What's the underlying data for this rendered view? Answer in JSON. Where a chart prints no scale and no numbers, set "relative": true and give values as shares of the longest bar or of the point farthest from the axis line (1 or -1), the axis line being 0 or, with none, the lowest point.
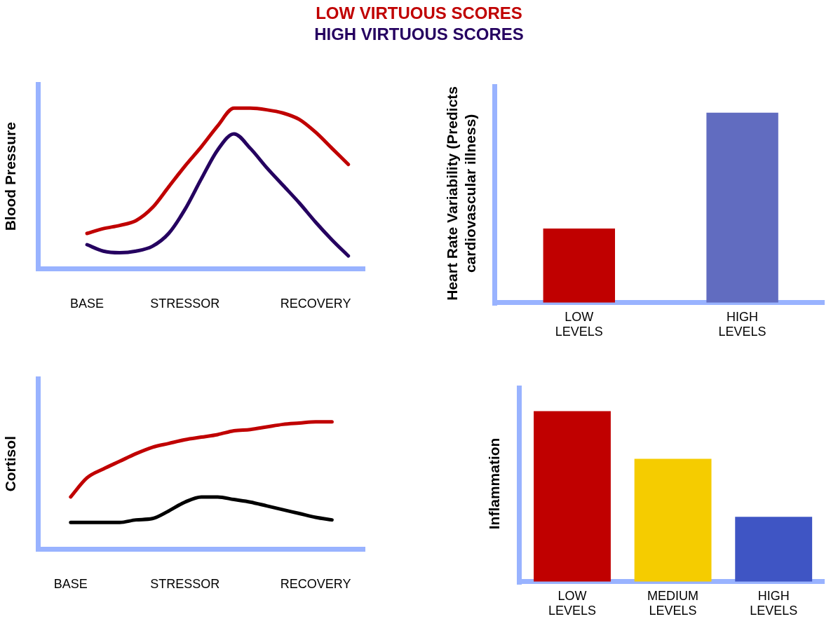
{
  "chart_data": [
    {
      "type": "line",
      "relative": true,
      "ylabel": "Blood Pressure",
      "legend": "top",
      "grid": false,
      "marker": "none",
      "line_style": "solid",
      "categories": [
        null,
        null,
        null,
        "BASE",
        null,
        null,
        null,
        null,
        null,
        "STRESSOR",
        null,
        null,
        null,
        null,
        null,
        null,
        null,
        "RECOVERY",
        null,
        null,
        null
      ],
      "series": [
        {
          "name": "LOW VIRTUOUS SCORES",
          "color": "#c00000",
          "values": [
            null,
            null,
            null,
            0.22,
            0.25,
            0.27,
            0.3,
            0.38,
            0.51,
            0.64,
            0.76,
            0.89,
            1.0,
            1.0,
            0.99,
            0.97,
            0.93,
            0.85,
            0.75,
            0.65,
            null
          ]
        },
        {
          "name": "HIGH VIRTUOUS SCORES",
          "color": "#250060",
          "values": [
            null,
            null,
            null,
            0.15,
            0.11,
            0.1,
            0.11,
            0.14,
            0.22,
            0.37,
            0.56,
            0.74,
            0.84,
            0.75,
            0.63,
            0.52,
            0.41,
            0.29,
            0.18,
            0.08,
            null
          ]
        }
      ]
    },
    {
      "type": "bar",
      "relative": true,
      "ylabel": "Heart Rate Variability (Predicts cardiovascular illness)",
      "grid": false,
      "categories": [
        "LOW LEVELS",
        "HIGH LEVELS"
      ],
      "values": [
        0.39,
        1.0
      ],
      "colors": [
        "#c00000",
        "#616cc0"
      ]
    },
    {
      "type": "line",
      "relative": true,
      "ylabel": "Cortisol",
      "grid": false,
      "marker": "none",
      "line_style": "solid",
      "categories": [
        null,
        null,
        "BASE",
        null,
        null,
        null,
        null,
        null,
        null,
        "STRESSOR",
        null,
        null,
        null,
        null,
        null,
        null,
        null,
        "RECOVERY",
        null,
        null,
        null
      ],
      "series": [
        {
          "color": "#c00000",
          "values": [
            null,
            null,
            0.41,
            0.56,
            0.63,
            0.69,
            0.75,
            0.8,
            0.83,
            0.86,
            0.88,
            0.9,
            0.93,
            0.94,
            0.96,
            0.98,
            0.99,
            1.0,
            1.0,
            null,
            null
          ]
        },
        {
          "color": "#000000",
          "values": [
            null,
            null,
            0.21,
            0.21,
            0.21,
            0.21,
            0.23,
            0.24,
            0.3,
            0.37,
            0.41,
            0.41,
            0.39,
            0.37,
            0.34,
            0.31,
            0.28,
            0.25,
            0.23,
            null,
            null
          ]
        }
      ]
    },
    {
      "type": "bar",
      "relative": true,
      "ylabel": "Inflammation",
      "grid": false,
      "categories": [
        "LOW LEVELS",
        "MEDIUM LEVELS",
        "HIGH LEVELS"
      ],
      "values": [
        1.0,
        0.72,
        0.38
      ],
      "colors": [
        "#c00000",
        "#f5cc00",
        "#3f55c4"
      ]
    }
  ]
}
